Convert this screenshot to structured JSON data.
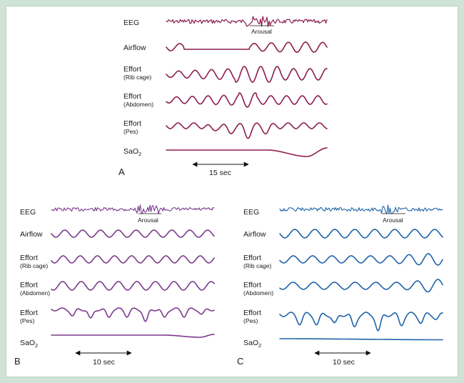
{
  "panels": [
    {
      "id": "A",
      "letter": "A",
      "color": "#8c1d4e",
      "labels": {
        "eeg": "EEG",
        "airflow": "Airflow",
        "rib_main": "Effort",
        "rib_sub": "(Rib cage)",
        "abd_main": "Effort",
        "abd_sub": "(Abdomen)",
        "pes_main": "Effort",
        "pes_sub": "(Pes)",
        "sao2_main": "SaO",
        "sao2_sub": "2"
      },
      "arousal": "Arousal",
      "timescale": "15 sec"
    },
    {
      "id": "B",
      "letter": "B",
      "color": "#7b3a8c",
      "labels": {
        "eeg": "EEG",
        "airflow": "Airflow",
        "rib_main": "Effort",
        "rib_sub": "(Rib cage)",
        "abd_main": "Effort",
        "abd_sub": "(Abdomen)",
        "pes_main": "Effort",
        "pes_sub": "(Pes)",
        "sao2_main": "SaO",
        "sao2_sub": "2"
      },
      "arousal": "Arousal",
      "timescale": "10 sec"
    },
    {
      "id": "C",
      "letter": "C",
      "color": "#1f63a8",
      "labels": {
        "eeg": "EEG",
        "airflow": "Airflow",
        "rib_main": "Effort",
        "rib_sub": "(Rib cage)",
        "abd_main": "Effort",
        "abd_sub": "(Abdomen)",
        "pes_main": "Effort",
        "pes_sub": "(Pes)",
        "sao2_main": "SaO",
        "sao2_sub": "2"
      },
      "arousal": "Arousal",
      "timescale": "10 sec"
    }
  ]
}
